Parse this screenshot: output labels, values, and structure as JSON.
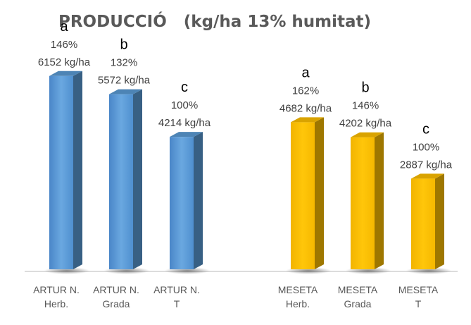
{
  "chart_data": {
    "type": "bar",
    "title": "PRODUCCIÓ   (kg/ha 13% humitat)",
    "categories": [
      [
        "ARTUR N.",
        "Herb."
      ],
      [
        "ARTUR N.",
        "Grada"
      ],
      [
        "ARTUR N.",
        "T"
      ],
      [
        "MESETA",
        "Herb."
      ],
      [
        "MESETA",
        "Grada"
      ],
      [
        "MESETA",
        "T"
      ]
    ],
    "values": [
      6152,
      5572,
      4214,
      4682,
      4202,
      2887
    ],
    "unit": "kg/ha",
    "percent_labels": [
      "146%",
      "132%",
      "100%",
      "162%",
      "146%",
      "100%"
    ],
    "value_labels": [
      "6152 kg/ha",
      "5572 kg/ha",
      "4214 kg/ha",
      "4682 kg/ha",
      "4202 kg/ha",
      "2887 kg/ha"
    ],
    "significance_letters": [
      "a",
      "b",
      "c",
      "a",
      "b",
      "c"
    ],
    "bar_colors": [
      "#5b9bd5",
      "#5b9bd5",
      "#5b9bd5",
      "#ffc000",
      "#ffc000",
      "#ffc000"
    ],
    "ylim": [
      0,
      7000
    ],
    "grid": false,
    "style": "3d-column"
  }
}
